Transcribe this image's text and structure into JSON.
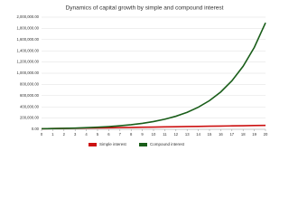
{
  "chart_data": {
    "type": "line",
    "title": "Dynamics of capital growth by simple and compound interest",
    "x": [
      0,
      1,
      2,
      3,
      4,
      5,
      6,
      7,
      8,
      9,
      10,
      11,
      12,
      13,
      14,
      15,
      16,
      17,
      18,
      19,
      20
    ],
    "series": [
      {
        "name": "Simple interest",
        "color": "#cc1111",
        "values": [
          10000,
          13000,
          16000,
          19000,
          22000,
          25000,
          28000,
          31000,
          34000,
          37000,
          40000,
          43000,
          46000,
          49000,
          52000,
          55000,
          58000,
          61000,
          64000,
          67000,
          70000
        ]
      },
      {
        "name": "Compound interest",
        "color": "#1a5e1a",
        "values": [
          10000,
          13000,
          16900,
          21970,
          28561,
          37129,
          48268,
          62749,
          81573,
          106045,
          137858,
          179216,
          232981,
          302875,
          393738,
          511859,
          665417,
          865042,
          1124554,
          1461920,
          1900496
        ]
      }
    ],
    "xlim": [
      0,
      20
    ],
    "xticks": [
      0,
      1,
      2,
      3,
      4,
      5,
      6,
      7,
      8,
      9,
      10,
      11,
      12,
      13,
      14,
      15,
      16,
      17,
      18,
      19,
      20
    ],
    "ylim": [
      0,
      2000000
    ],
    "yticks": [
      {
        "value": 0,
        "label": "0.00"
      },
      {
        "value": 200000,
        "label": "200,000.00"
      },
      {
        "value": 400000,
        "label": "400,000.00"
      },
      {
        "value": 600000,
        "label": "600,000.00"
      },
      {
        "value": 800000,
        "label": "800,000.00"
      },
      {
        "value": 1000000,
        "label": "1,000,000.00"
      },
      {
        "value": 1200000,
        "label": "1,200,000.00"
      },
      {
        "value": 1400000,
        "label": "1,400,000.00"
      },
      {
        "value": 1600000,
        "label": "1,600,000.00"
      },
      {
        "value": 1800000,
        "label": "1,800,000.00"
      },
      {
        "value": 2000000,
        "label": "2,000,000.00"
      }
    ],
    "grid": true,
    "legend": "bottom"
  }
}
